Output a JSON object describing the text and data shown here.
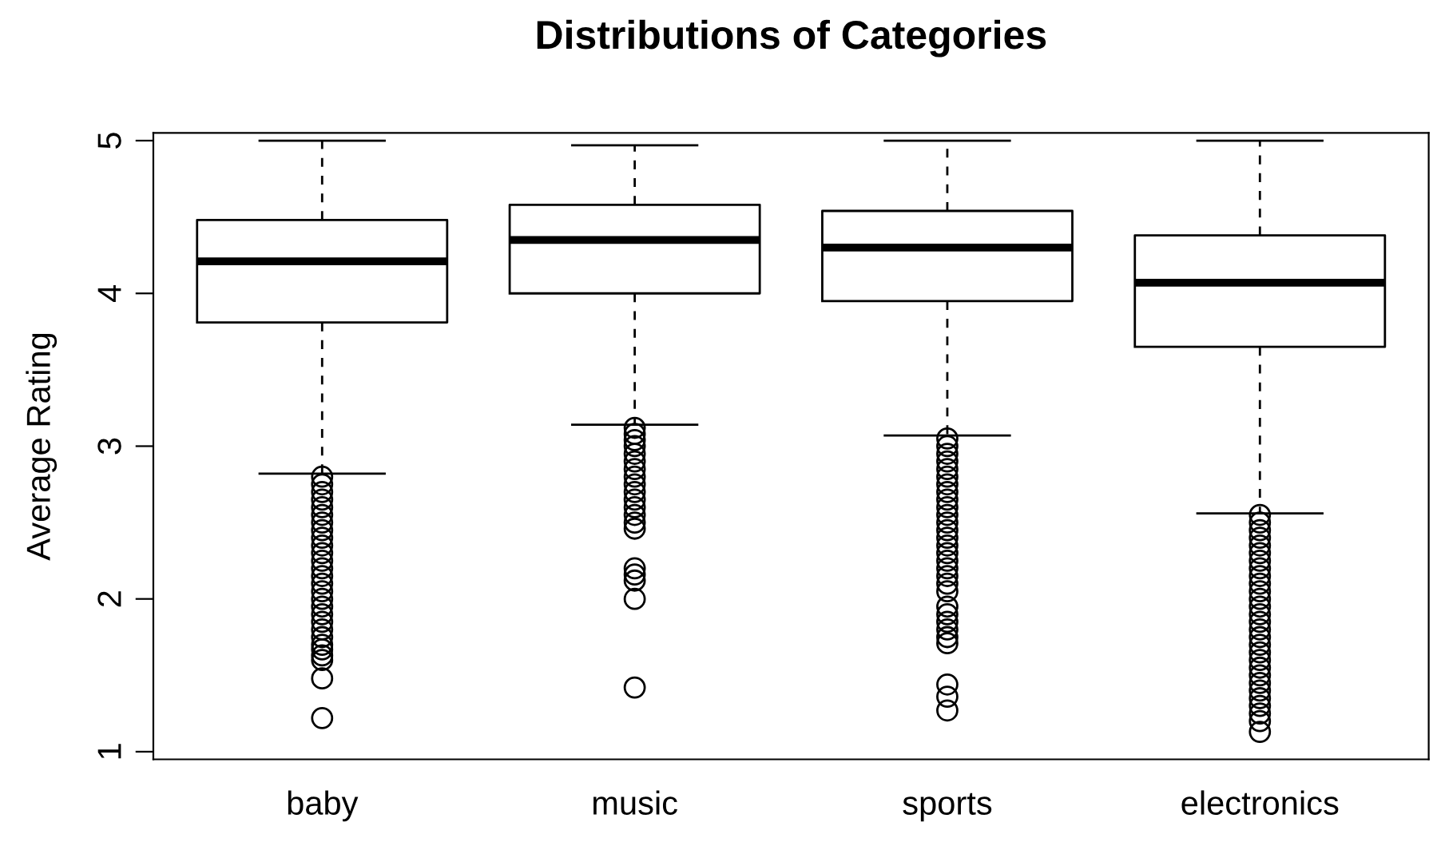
{
  "chart_data": {
    "type": "box",
    "title": "Distributions of Categories",
    "ylabel": "Average Rating",
    "categories": [
      "baby",
      "music",
      "sports",
      "electronics"
    ],
    "boxes": [
      {
        "low": 2.82,
        "q1": 3.81,
        "median": 4.21,
        "q3": 4.48,
        "high": 5.0,
        "outliers": [
          2.8,
          2.75,
          2.7,
          2.65,
          2.6,
          2.55,
          2.5,
          2.45,
          2.4,
          2.35,
          2.3,
          2.25,
          2.2,
          2.15,
          2.1,
          2.05,
          2.0,
          1.95,
          1.9,
          1.85,
          1.8,
          1.75,
          1.7,
          1.67,
          1.63,
          1.6,
          1.48,
          1.22
        ]
      },
      {
        "low": 3.14,
        "q1": 4.0,
        "median": 4.35,
        "q3": 4.58,
        "high": 4.97,
        "outliers": [
          3.12,
          3.08,
          3.04,
          3.0,
          2.95,
          2.9,
          2.85,
          2.8,
          2.75,
          2.7,
          2.65,
          2.6,
          2.55,
          2.5,
          2.46,
          2.2,
          2.16,
          2.12,
          2.0,
          1.42
        ]
      },
      {
        "low": 3.07,
        "q1": 3.95,
        "median": 4.3,
        "q3": 4.54,
        "high": 5.0,
        "outliers": [
          3.05,
          3.0,
          2.95,
          2.9,
          2.85,
          2.8,
          2.75,
          2.7,
          2.65,
          2.6,
          2.55,
          2.5,
          2.45,
          2.4,
          2.35,
          2.3,
          2.25,
          2.2,
          2.15,
          2.1,
          2.05,
          1.95,
          1.9,
          1.85,
          1.8,
          1.75,
          1.71,
          1.44,
          1.36,
          1.27
        ]
      },
      {
        "low": 2.56,
        "q1": 3.65,
        "median": 4.07,
        "q3": 4.38,
        "high": 5.0,
        "outliers": [
          2.55,
          2.5,
          2.45,
          2.4,
          2.35,
          2.3,
          2.25,
          2.2,
          2.15,
          2.1,
          2.05,
          2.0,
          1.95,
          1.9,
          1.85,
          1.8,
          1.75,
          1.7,
          1.65,
          1.6,
          1.55,
          1.5,
          1.45,
          1.4,
          1.35,
          1.3,
          1.25,
          1.2,
          1.13
        ]
      }
    ],
    "ylim": [
      0.95,
      5.05
    ],
    "yticks": [
      1,
      2,
      3,
      4,
      5
    ],
    "grid": false,
    "legend": false
  }
}
